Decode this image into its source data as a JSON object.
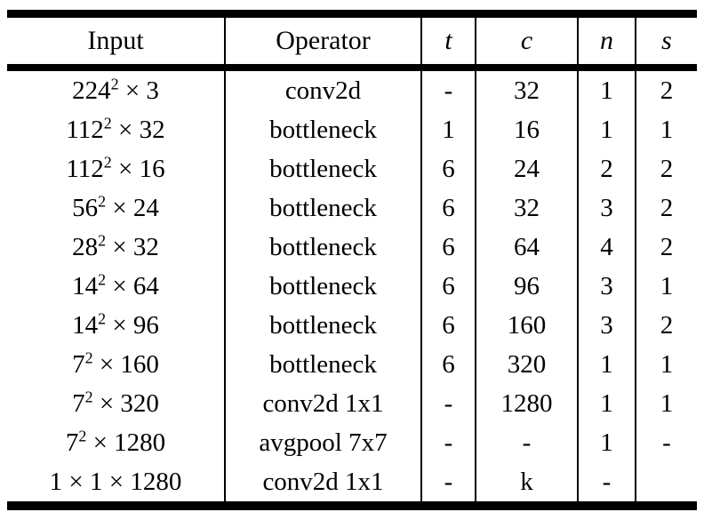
{
  "colors": {
    "text": "#000000",
    "rules": "#000000",
    "background": "#ffffff"
  },
  "table": {
    "columns": [
      {
        "label": "Input",
        "math_italic": false
      },
      {
        "label": "Operator",
        "math_italic": false
      },
      {
        "label": "t",
        "math_italic": true
      },
      {
        "label": "c",
        "math_italic": true
      },
      {
        "label": "n",
        "math_italic": true
      },
      {
        "label": "s",
        "math_italic": true
      }
    ],
    "rows": [
      [
        "224² × 3",
        "conv2d",
        "-",
        "32",
        "1",
        "2"
      ],
      [
        "112² × 32",
        "bottleneck",
        "1",
        "16",
        "1",
        "1"
      ],
      [
        "112² × 16",
        "bottleneck",
        "6",
        "24",
        "2",
        "2"
      ],
      [
        "56² × 24",
        "bottleneck",
        "6",
        "32",
        "3",
        "2"
      ],
      [
        "28² × 32",
        "bottleneck",
        "6",
        "64",
        "4",
        "2"
      ],
      [
        "14² × 64",
        "bottleneck",
        "6",
        "96",
        "3",
        "1"
      ],
      [
        "14² × 96",
        "bottleneck",
        "6",
        "160",
        "3",
        "2"
      ],
      [
        "7² × 160",
        "bottleneck",
        "6",
        "320",
        "1",
        "1"
      ],
      [
        "7² × 320",
        "conv2d 1x1",
        "-",
        "1280",
        "1",
        "1"
      ],
      [
        "7² × 1280",
        "avgpool 7x7",
        "-",
        "-",
        "1",
        "-"
      ],
      [
        "1 × 1 × 1280",
        "conv2d 1x1",
        "-",
        "k",
        "-",
        ""
      ]
    ]
  }
}
